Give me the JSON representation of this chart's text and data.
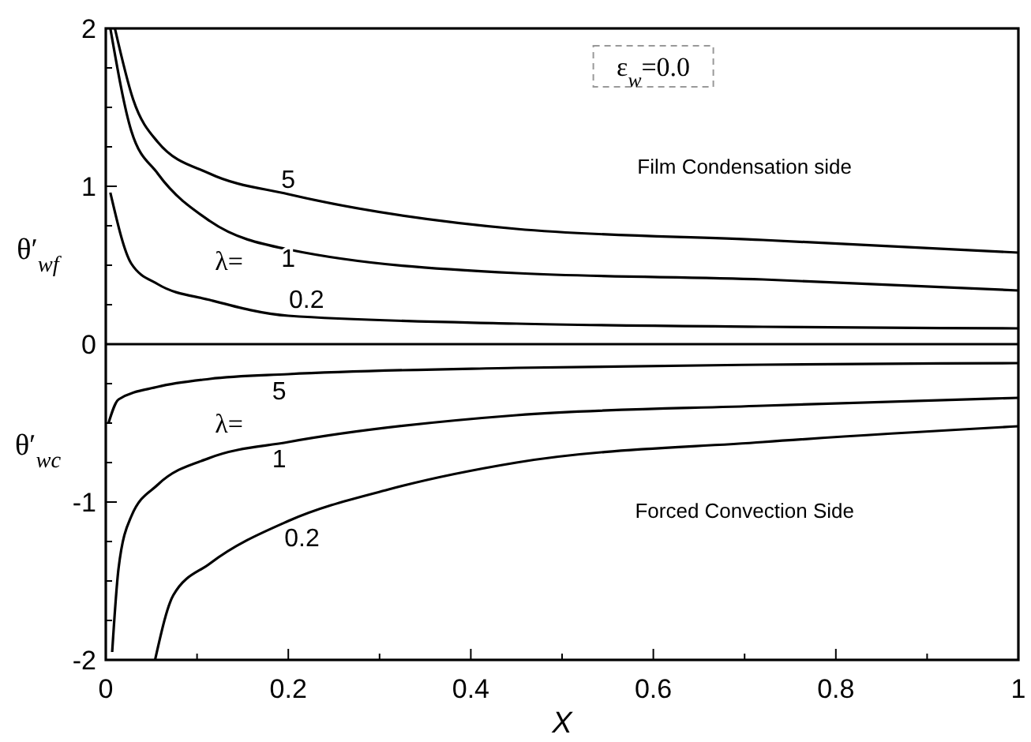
{
  "chart_data": {
    "type": "line",
    "xlabel": "X",
    "ylabel": "θ′$_{wf}$",
    "xlim": [
      0,
      1
    ],
    "ylim": [
      -2,
      2
    ],
    "xticks": [
      0,
      {
        "value": 0.1,
        "label": null
      },
      0.2,
      {
        "value": 0.3,
        "label": null
      },
      0.4,
      {
        "value": 0.5,
        "label": null
      },
      0.6,
      {
        "value": 0.7,
        "label": null
      },
      0.8,
      {
        "value": 0.9,
        "label": null
      },
      1
    ],
    "yticks": [
      -2,
      {
        "value": -1.75,
        "label": null
      },
      {
        "value": -1.5,
        "label": null
      },
      {
        "value": -1.25,
        "label": null
      },
      -1,
      {
        "value": -0.75,
        "label": null
      },
      {
        "value": -0.5,
        "label": null
      },
      {
        "value": -0.25,
        "label": null
      },
      0,
      {
        "value": 0.25,
        "label": null
      },
      {
        "value": 0.5,
        "label": null
      },
      {
        "value": 0.75,
        "label": null
      },
      1,
      {
        "value": 1.25,
        "label": null
      },
      {
        "value": 1.5,
        "label": null
      },
      {
        "value": 1.75,
        "label": null
      },
      2
    ],
    "marker": "none",
    "line_style": "solid",
    "series": [
      {
        "color": "#000000",
        "x": [
          0.01,
          0.03,
          0.057,
          0.114,
          0.2,
          0.45,
          0.72,
          1
        ],
        "values": [
          2,
          1.55,
          1.28,
          1.08,
          0.95,
          0.73,
          0.66,
          0.58
        ]
      },
      {
        "color": "#000000",
        "x": [
          0.005,
          0.028,
          0.057,
          0.114,
          0.2,
          0.45,
          0.72,
          1
        ],
        "values": [
          2,
          1.35,
          1.08,
          0.78,
          0.6,
          0.45,
          0.41,
          0.34
        ]
      },
      {
        "color": "#000000",
        "x": [
          0.005,
          0.028,
          0.057,
          0.114,
          0.2,
          0.45,
          0.72,
          1
        ],
        "values": [
          0.96,
          0.51,
          0.38,
          0.28,
          0.18,
          0.13,
          0.11,
          0.1
        ]
      },
      {
        "color": "#000000",
        "x": [
          0.003,
          0.014,
          0.057,
          0.114,
          0.2,
          0.45,
          0.72,
          1
        ],
        "values": [
          -0.5,
          -0.35,
          -0.27,
          -0.22,
          -0.19,
          -0.15,
          -0.13,
          -0.12
        ]
      },
      {
        "color": "#000000",
        "x": [
          0.007,
          0.014,
          0.028,
          0.057,
          0.114,
          0.2,
          0.45,
          0.72,
          1
        ],
        "values": [
          -1.95,
          -1.42,
          -1.09,
          -0.89,
          -0.72,
          -0.62,
          -0.45,
          -0.39,
          -0.34
        ]
      },
      {
        "color": "#000000",
        "x": [
          0.054,
          0.074,
          0.114,
          0.2,
          0.31,
          0.45,
          0.72,
          1
        ],
        "values": [
          -2,
          -1.59,
          -1.39,
          -1.12,
          -0.92,
          -0.75,
          -0.62,
          -0.52
        ]
      }
    ],
    "ref_lines": [
      {
        "axis": "y",
        "value": 0,
        "color": "#000000"
      }
    ],
    "annotations": [
      "ε$_{w}$=0.0",
      "Film Condensation side",
      "Forced Convection Side",
      "θ′$_{wc}$",
      "5",
      "1",
      "0.2",
      "λ=",
      "5",
      "λ=",
      "1",
      "0.2"
    ]
  }
}
